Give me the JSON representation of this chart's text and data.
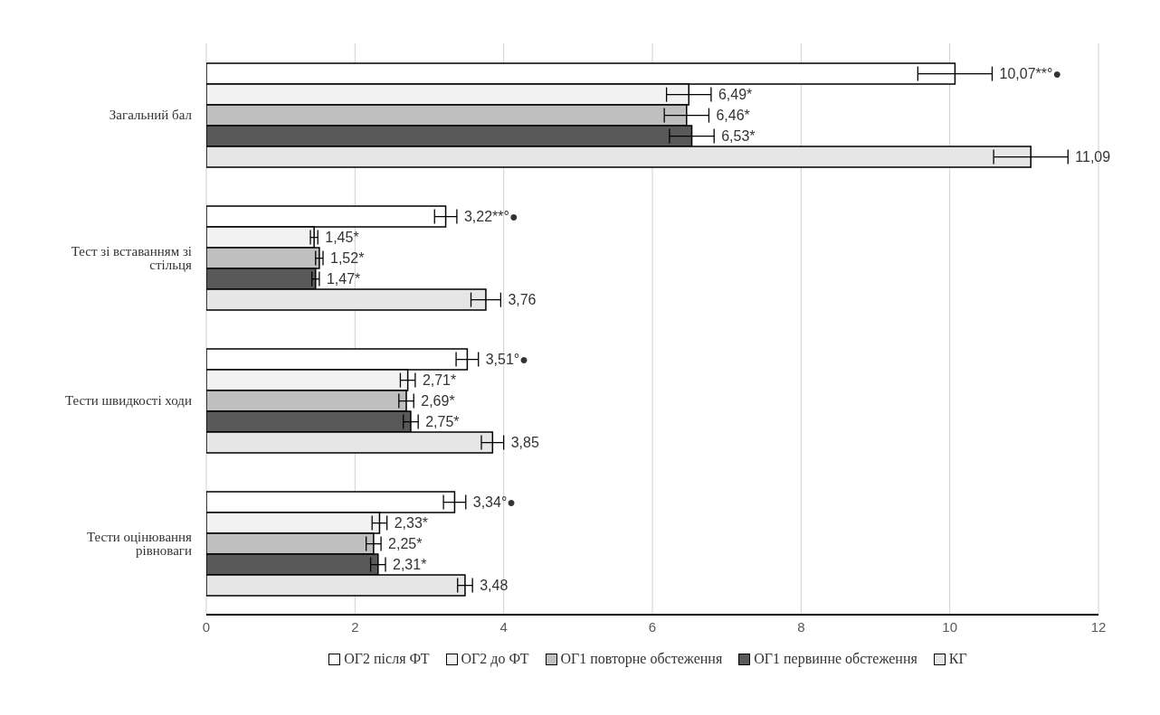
{
  "chart_data": {
    "type": "bar",
    "orientation": "horizontal",
    "categories": [
      "Загальний бал",
      "Тест зі вставанням зі стільця",
      "Тести швидкості ходи",
      "Тести оцінювання рівноваги"
    ],
    "series": [
      {
        "name": "ОГ2 після ФТ",
        "color": "#ffffff",
        "values": [
          10.07,
          3.22,
          3.51,
          3.34
        ],
        "errors": [
          0.5,
          0.15,
          0.15,
          0.15
        ],
        "value_labels": [
          "10,07**°●",
          "3,22**°●",
          "3,51°●",
          "3,34°●"
        ]
      },
      {
        "name": "ОГ2 до ФТ",
        "color": "#f2f2f2",
        "values": [
          6.49,
          1.45,
          2.71,
          2.33
        ],
        "errors": [
          0.3,
          0.05,
          0.1,
          0.1
        ],
        "value_labels": [
          "6,49*",
          "1,45*",
          "2,71*",
          "2,33*"
        ]
      },
      {
        "name": "ОГ1 повторне обстеження",
        "color": "#bfbfbf",
        "values": [
          6.46,
          1.52,
          2.69,
          2.25
        ],
        "errors": [
          0.3,
          0.05,
          0.1,
          0.1
        ],
        "value_labels": [
          "6,46*",
          "1,52*",
          "2,69*",
          "2,25*"
        ]
      },
      {
        "name": "ОГ1 первинне обстеження",
        "color": "#595959",
        "values": [
          6.53,
          1.47,
          2.75,
          2.31
        ],
        "errors": [
          0.3,
          0.05,
          0.1,
          0.1
        ],
        "value_labels": [
          "6,53*",
          "1,47*",
          "2,75*",
          "2,31*"
        ]
      },
      {
        "name": "КГ",
        "color": "#e7e6e6",
        "values": [
          11.09,
          3.76,
          3.85,
          3.48
        ],
        "errors": [
          0.5,
          0.2,
          0.15,
          0.1
        ],
        "value_labels": [
          "11,09",
          "3,76",
          "3,85",
          "3,48"
        ]
      }
    ],
    "xlim": [
      0,
      12
    ],
    "xticks": [
      0,
      2,
      4,
      6,
      8,
      10,
      12
    ],
    "grid": "x",
    "legend": "bottom"
  }
}
